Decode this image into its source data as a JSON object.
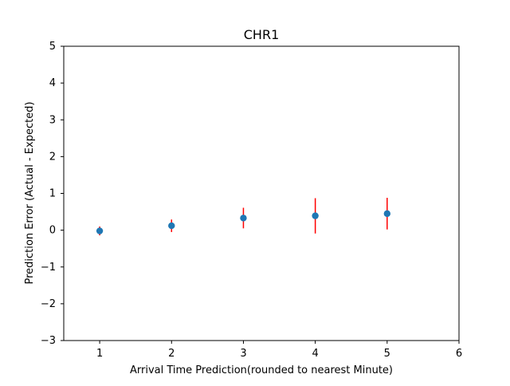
{
  "chart_data": {
    "type": "scatter",
    "title": "CHR1",
    "xlabel": "Arrival Time Prediction(rounded to nearest Minute)",
    "ylabel": "Prediction Error (Actual - Expected)",
    "xlim": [
      0.5,
      6
    ],
    "ylim": [
      -3,
      5
    ],
    "x_ticks": [
      1,
      2,
      3,
      4,
      5,
      6
    ],
    "y_ticks": [
      -3,
      -2,
      -1,
      0,
      1,
      2,
      3,
      4,
      5
    ],
    "x_tick_labels": [
      "1",
      "2",
      "3",
      "4",
      "5",
      "6"
    ],
    "y_tick_labels": [
      "−3",
      "−2",
      "−1",
      "0",
      "1",
      "2",
      "3",
      "4",
      "5"
    ],
    "grid": false,
    "series": [
      {
        "x": [
          1,
          2,
          3,
          4,
          5
        ],
        "y": [
          -0.02,
          0.12,
          0.33,
          0.39,
          0.45
        ],
        "yerr": [
          0.12,
          0.17,
          0.28,
          0.48,
          0.43
        ],
        "marker_color": "#1f77b4",
        "errorbar_color": "#ff0000"
      }
    ]
  }
}
